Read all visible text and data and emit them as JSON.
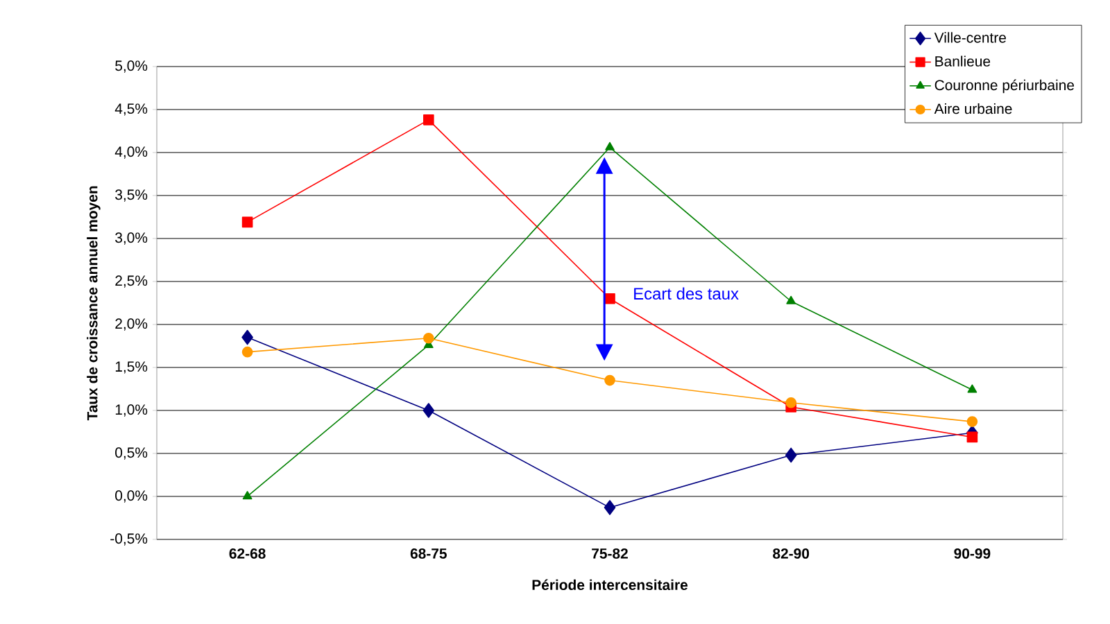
{
  "chart_data": {
    "type": "line",
    "xlabel": "Période intercensitaire",
    "ylabel": "Taux de croissance annuel moyen",
    "categories": [
      "62-68",
      "68-75",
      "75-82",
      "82-90",
      "90-99"
    ],
    "series": [
      {
        "name": "Ville-centre",
        "color": "#000080",
        "marker": "diamond",
        "values": [
          1.85,
          1.0,
          -0.13,
          0.48,
          0.74
        ]
      },
      {
        "name": "Banlieue",
        "color": "#ff0000",
        "marker": "square",
        "values": [
          3.19,
          4.38,
          2.3,
          1.04,
          0.69
        ]
      },
      {
        "name": "Couronne périurbaine",
        "color": "#008000",
        "marker": "triangle",
        "values": [
          0.0,
          1.76,
          4.06,
          2.27,
          1.24
        ]
      },
      {
        "name": "Aire urbaine",
        "color": "#ff9900",
        "marker": "circle",
        "values": [
          1.68,
          1.84,
          1.35,
          1.09,
          0.87
        ]
      }
    ],
    "ylim": [
      -0.5,
      5.0
    ],
    "yticks": [
      {
        "value": -0.5,
        "label": "-0,5%"
      },
      {
        "value": 0,
        "label": "0,0%"
      },
      {
        "value": 0.5,
        "label": "0,5%"
      },
      {
        "value": 1.0,
        "label": "1,0%"
      },
      {
        "value": 1.5,
        "label": "1,5%"
      },
      {
        "value": 2.0,
        "label": "2,0%"
      },
      {
        "value": 2.5,
        "label": "2,5%"
      },
      {
        "value": 3.0,
        "label": "3,0%"
      },
      {
        "value": 3.5,
        "label": "3,5%"
      },
      {
        "value": 4.0,
        "label": "4,0%"
      },
      {
        "value": 4.5,
        "label": "4,5%"
      },
      {
        "value": 5.0,
        "label": "5,0%"
      }
    ],
    "grid": "y",
    "legend": "top right",
    "annotations": [
      "Ecart des taux"
    ]
  }
}
